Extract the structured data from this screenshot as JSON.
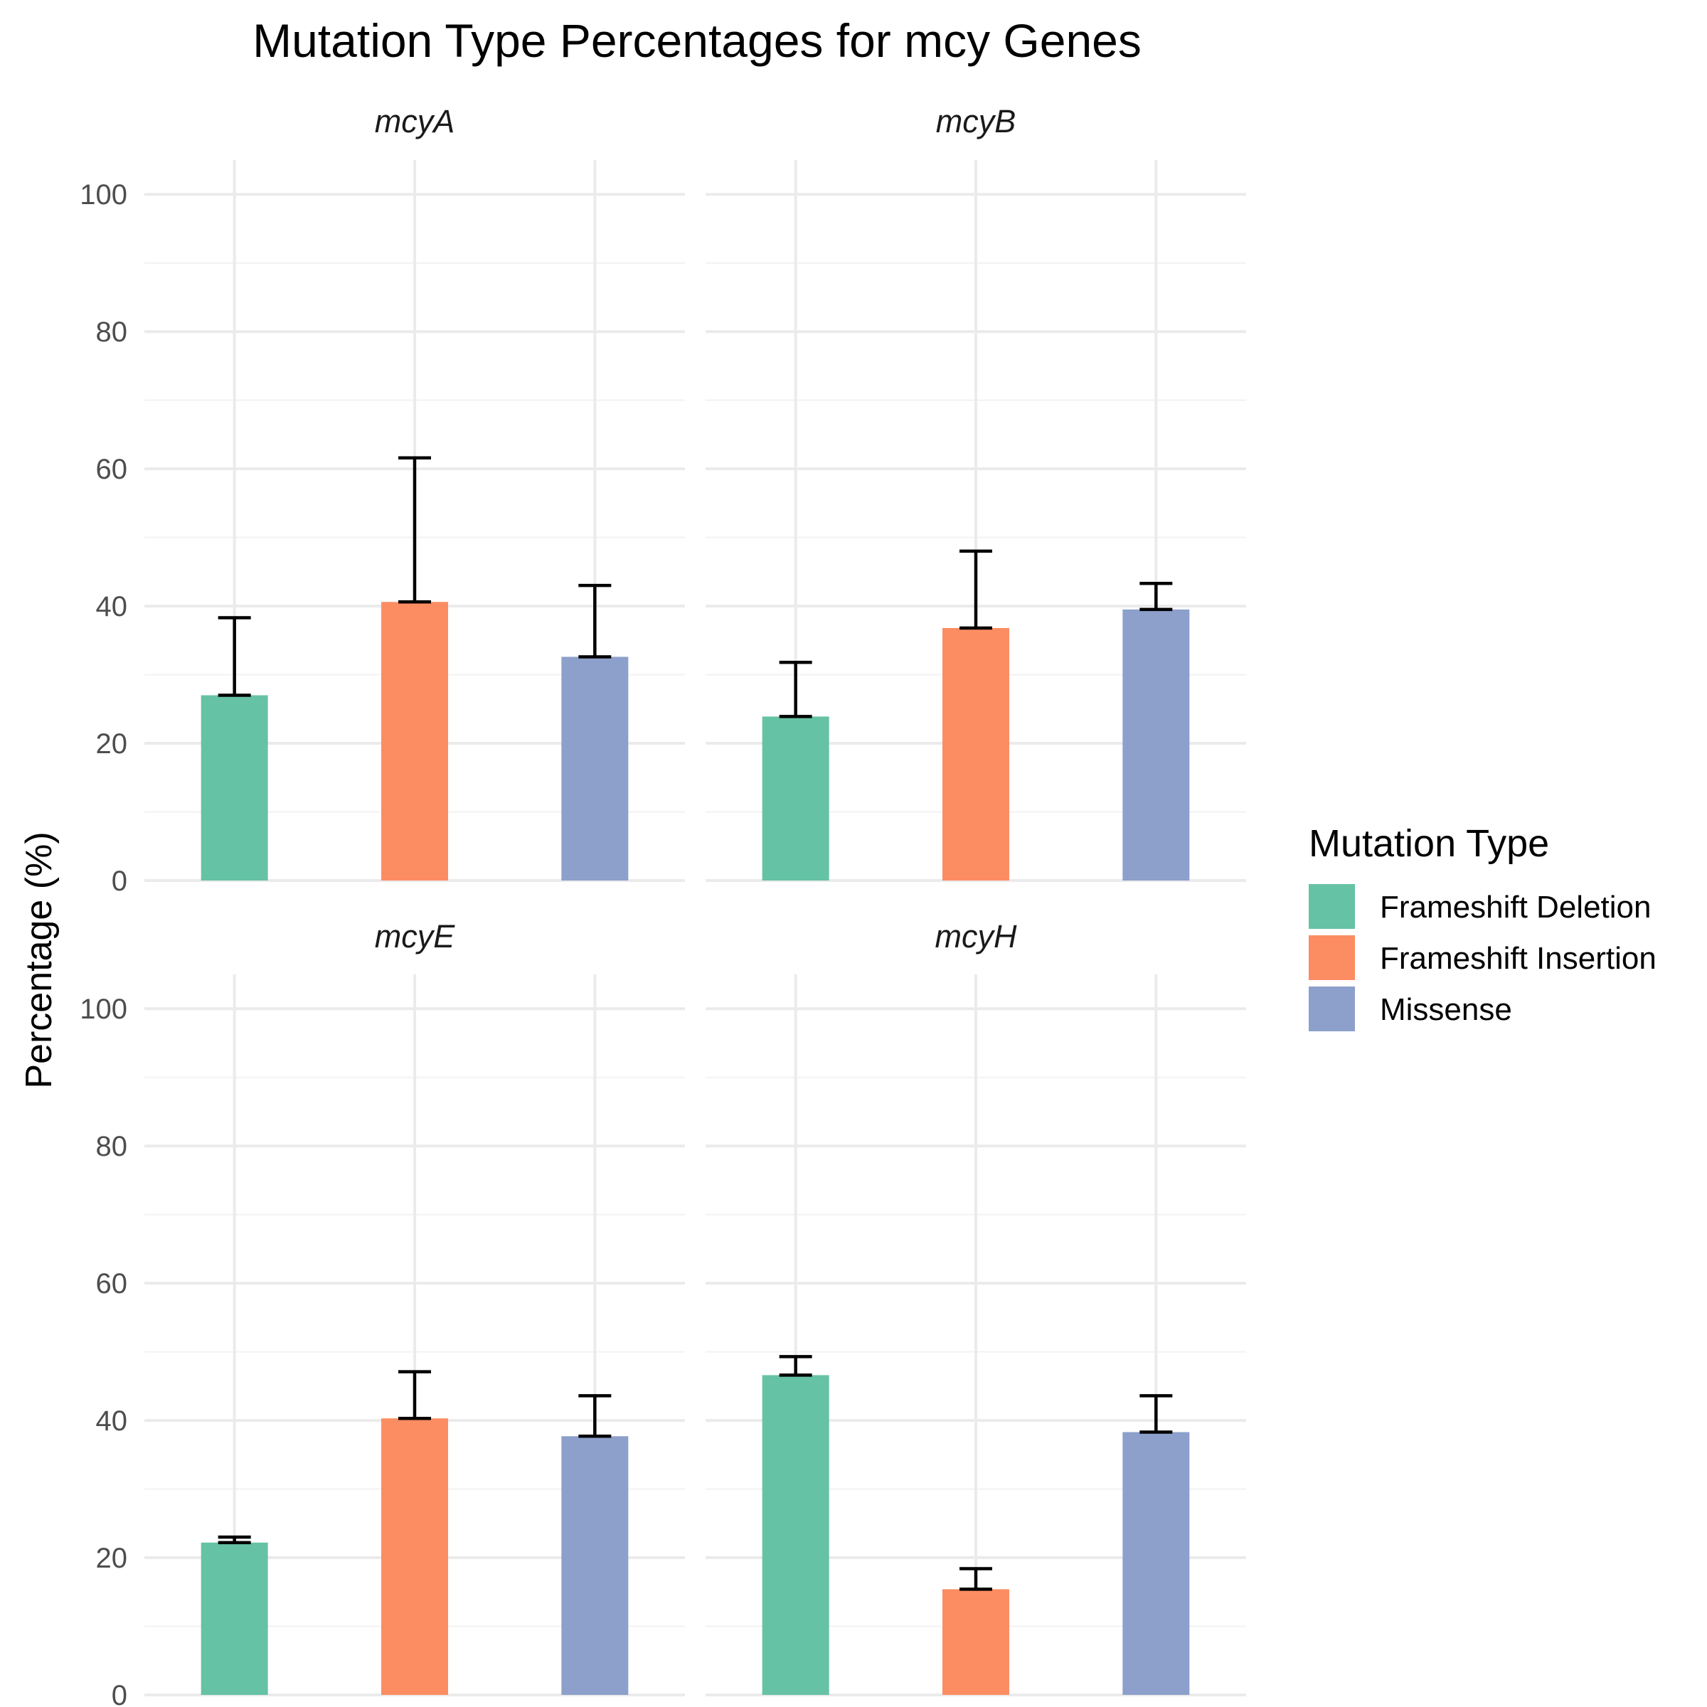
{
  "chart_data": {
    "type": "bar",
    "title": "Mutation Type Percentages for mcy Genes",
    "xlabel": "",
    "ylabel": "Percentage (%)",
    "ylim": [
      0,
      105
    ],
    "yticks": [
      0,
      20,
      40,
      60,
      80,
      100
    ],
    "grid": true,
    "legend": {
      "title": "Mutation Type",
      "placement": "right"
    },
    "categories": [
      "Frameshift Deletion",
      "Frameshift Insertion",
      "Missense"
    ],
    "colors": [
      "#66c2a5",
      "#fc8d62",
      "#8da0cb"
    ],
    "panels": [
      {
        "name": "mcyA",
        "values": [
          27.0,
          40.6,
          32.6
        ],
        "error_upper": [
          38.3,
          61.6,
          43.0
        ],
        "error_lower": [
          27.0,
          40.6,
          32.6
        ]
      },
      {
        "name": "mcyB",
        "values": [
          23.9,
          36.8,
          39.5
        ],
        "error_upper": [
          31.8,
          48.0,
          43.3
        ],
        "error_lower": [
          23.9,
          36.8,
          39.5
        ]
      },
      {
        "name": "mcyE",
        "values": [
          22.2,
          40.3,
          37.7
        ],
        "error_upper": [
          23.0,
          47.1,
          43.6
        ],
        "error_lower": [
          22.2,
          40.3,
          37.7
        ]
      },
      {
        "name": "mcyH",
        "values": [
          46.6,
          15.4,
          38.3
        ],
        "error_upper": [
          49.3,
          18.4,
          43.6
        ],
        "error_lower": [
          46.6,
          15.4,
          38.3
        ]
      }
    ]
  }
}
